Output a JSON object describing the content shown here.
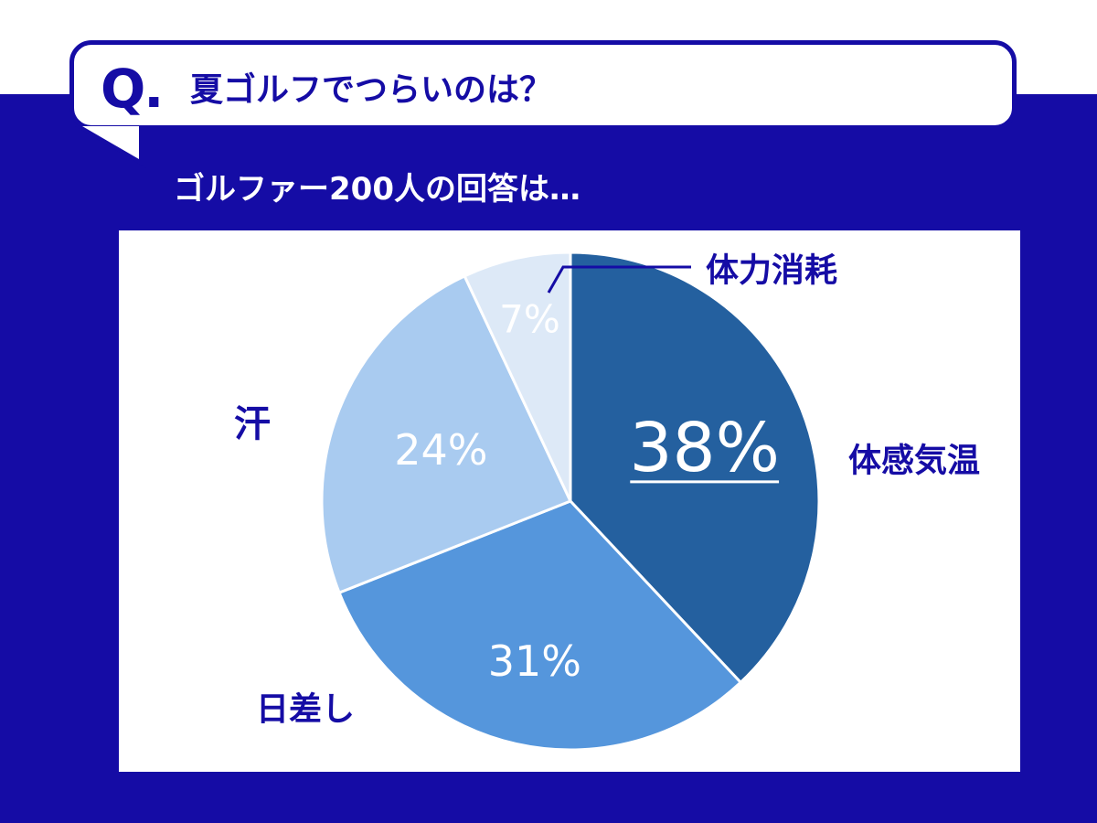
{
  "header": {
    "q_mark": "Q.",
    "question": "夏ゴルフでつらいのは？",
    "subtitle": "ゴルファー200人の回答は…"
  },
  "colors": {
    "background": "#150ca5",
    "accent_text": "#150ca5",
    "white": "#ffffff"
  },
  "chart_data": {
    "type": "pie",
    "title": "",
    "unit": "%",
    "slices": [
      {
        "label": "体感気温",
        "value": 38,
        "value_label": "38%",
        "color": "#24609f"
      },
      {
        "label": "日差し",
        "value": 31,
        "value_label": "31%",
        "color": "#5596dc"
      },
      {
        "label": "汗",
        "value": 24,
        "value_label": "24%",
        "color": "#a9cbf0"
      },
      {
        "label": "体力消耗",
        "value": 7,
        "value_label": "7%",
        "color": "#dde9f7"
      }
    ]
  }
}
